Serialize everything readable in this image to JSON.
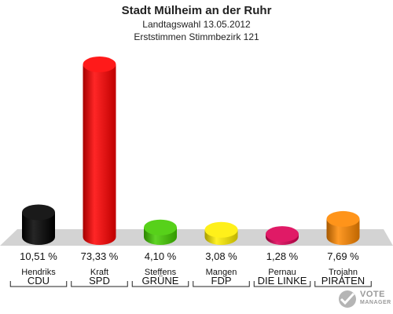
{
  "header": {
    "title": "Stadt Mülheim an der Ruhr",
    "subtitle": "Landtagswahl 13.05.2012",
    "subtitle2": "Erststimmen Stimmbezirk 121"
  },
  "chart_data": {
    "type": "bar",
    "title": "Stadt Mülheim an der Ruhr",
    "subtitle": "Landtagswahl 13.05.2012 — Erststimmen Stimmbezirk 121",
    "categories": [
      "CDU",
      "SPD",
      "GRÜNE",
      "FDP",
      "DIE LINKE",
      "PIRATEN"
    ],
    "candidates": [
      "Hendriks",
      "Kraft",
      "Steffens",
      "Mangen",
      "Pernau",
      "Trojahn"
    ],
    "values": [
      10.51,
      73.33,
      4.1,
      3.08,
      1.28,
      7.69
    ],
    "value_labels": [
      "10,51 %",
      "73,33 %",
      "4,10 %",
      "3,08 %",
      "1,28 %",
      "7,69 %"
    ],
    "colors": [
      "#000000",
      "#ff0000",
      "#44cc00",
      "#ffee00",
      "#dd0055",
      "#ff8800"
    ],
    "ylim": [
      0,
      80
    ],
    "grid": false,
    "legend": "none"
  },
  "logo": {
    "line1": "VOTE",
    "line2": "MANAGER"
  }
}
